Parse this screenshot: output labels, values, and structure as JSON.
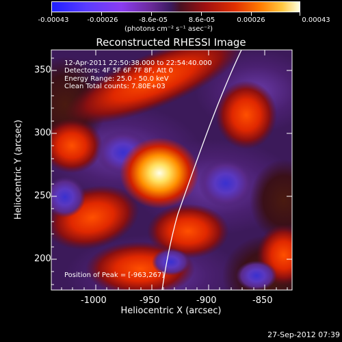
{
  "colorbar": {
    "tick_labels": [
      "-0.00043",
      "-0.00026",
      "-8.6e-05",
      "8.6e-05",
      "0.00026",
      "0.00043"
    ],
    "unit_label": "(photons cm⁻² s⁻¹ asec⁻²)"
  },
  "plot": {
    "title": "Reconstructed RHESSI Image",
    "xlabel": "Heliocentric X (arcsec)",
    "ylabel": "Heliocentric Y (arcsec)",
    "x_ticks": [
      "-1000",
      "-950",
      "-900",
      "-850"
    ],
    "y_ticks": [
      "350",
      "300",
      "250",
      "200"
    ]
  },
  "overlay": {
    "time_range": "12-Apr-2011 22:50:38.000 to 22:54:40.000",
    "detectors": "Detectors: 4F 5F 6F 7F 8F, Att 0",
    "energy": "Energy Range: 25.0 - 50.0 keV",
    "clean": "Clean     Total counts: 7.80E+03",
    "peak": "Position of Peak = [-963,267]"
  },
  "footer": {
    "timestamp": "27-Sep-2012 07:39"
  },
  "colors": {
    "background": "#000000",
    "text": "#ffffff",
    "limb_line": "#ffffff"
  }
}
